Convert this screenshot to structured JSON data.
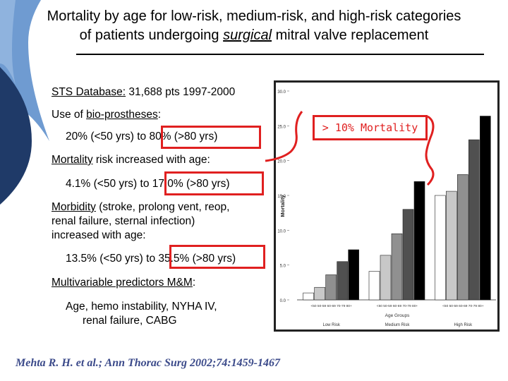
{
  "title": {
    "line1": "Mortality by age for low-risk, medium-risk, and high-risk categories",
    "line2_pre": "of patients undergoing ",
    "line2_em": "surgical",
    "line2_post": " mitral valve replacement"
  },
  "bullets": {
    "sts_label": "STS Database:",
    "sts_rest": " 31,688 pts 1997-2000",
    "use_pre": "Use of ",
    "use_link": "bio-prostheses",
    "use_post": ":",
    "use_detail": "20% (<50 yrs) to 80% (>80 yrs)",
    "mort_label": "Mortality",
    "mort_rest": " risk increased with age:",
    "mort_detail": "4.1% (<50 yrs) to 17.0% (>80 yrs)",
    "morb_label": "Morbidity",
    "morb_line1_rest": " (stroke, prolong vent, reop,",
    "morb_line2": "renal failure, sternal infection)",
    "morb_line3": "increased with age:",
    "morb_detail": "13.5% (<50 yrs) to 35.5% (>80 yrs)",
    "multi_label": "Multivariable predictors M&M",
    "multi_post": ":",
    "predictors_line1": "Age, hemo instability, NYHA IV,",
    "predictors_line2": "renal failure, CABG"
  },
  "annotation": "> 10% Mortality",
  "citation": "Mehta  R. H. et al.; Ann Thorac Surg 2002;74:1459-1467",
  "colors": {
    "highlight": "#e02020",
    "citation": "#3b4a8a",
    "deco_dark": "#1f3a68",
    "deco_light": "#6f9bd1"
  },
  "chart_data": {
    "type": "bar",
    "ylabel": "Mortality",
    "xlabel": "Age Groups",
    "ylim": [
      0,
      30
    ],
    "yticks": [
      "0.0",
      "5.0",
      "10.0",
      "15.0",
      "20.0",
      "25.0",
      "30.0"
    ],
    "categories": [
      "<50",
      "50-59",
      "60-69",
      "70-79",
      "80+"
    ],
    "groups": [
      {
        "name": "Low Risk",
        "tick_labels": "<50  50-59 60-69 70-79  80+",
        "values": [
          1.0,
          1.8,
          3.6,
          5.5,
          7.2
        ],
        "fills": [
          "#ffffff",
          "#c8c8c8",
          "#909090",
          "#505050",
          "#000000"
        ]
      },
      {
        "name": "Medium Risk",
        "tick_labels": "<50  50-59 60-69 70-79 80+",
        "values": [
          4.1,
          6.4,
          9.5,
          13.0,
          17.0
        ],
        "fills": [
          "#ffffff",
          "#c8c8c8",
          "#909090",
          "#505050",
          "#000000"
        ]
      },
      {
        "name": "High Risk",
        "tick_labels": "<50 50-59 60-69 70-79 80+",
        "values": [
          15.0,
          15.6,
          18.0,
          23.0,
          26.4
        ],
        "fills": [
          "#ffffff",
          "#c8c8c8",
          "#909090",
          "#505050",
          "#000000"
        ]
      }
    ]
  }
}
